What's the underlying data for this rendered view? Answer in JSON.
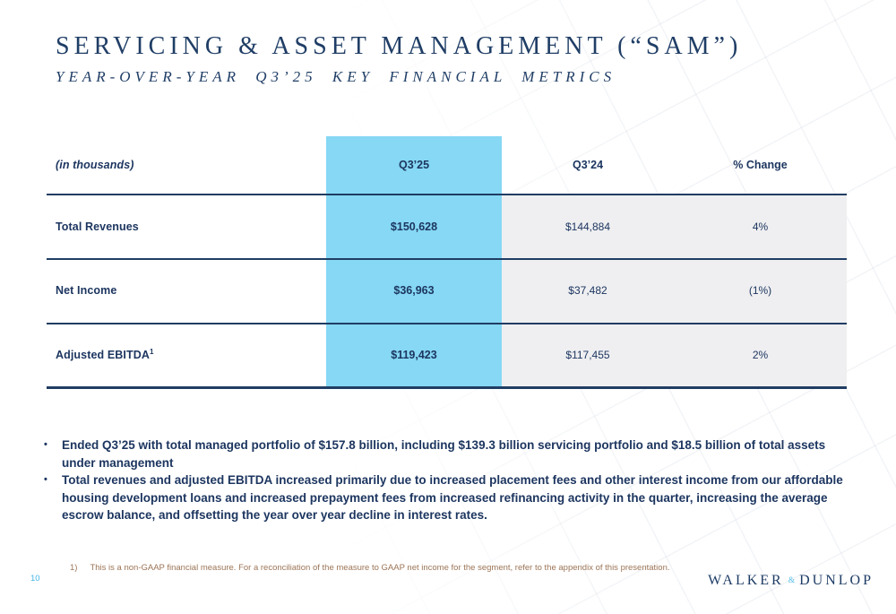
{
  "page": {
    "title": "S E R V I C I N G  &  A S S E T  M A N A G E M E N T  ( “ S A M ” )",
    "title_plain": "SERVICING & ASSET MANAGEMENT (“SAM”)",
    "subtitle": "YEAR-OVER-YEAR Q3’25 KEY FINANCIAL METRICS",
    "page_number": "10"
  },
  "table": {
    "unit_label": "(in thousands)",
    "columns": [
      "Q3’25",
      "Q3’24",
      "% Change"
    ],
    "rows": [
      {
        "label": "Total Revenues",
        "sup": "",
        "values": [
          "$150,628",
          "$144,884",
          "4%"
        ]
      },
      {
        "label": "Net Income",
        "sup": "",
        "values": [
          "$36,963",
          "$37,482",
          "(1%)"
        ]
      },
      {
        "label": "Adjusted EBITDA",
        "sup": "1",
        "values": [
          "$119,423",
          "$117,455",
          "2%"
        ]
      }
    ]
  },
  "bullets": [
    "Ended Q3’25 with total managed portfolio of $157.8 billion, including $139.3 billion servicing portfolio and $18.5 billion of total assets under management",
    "Total revenues and adjusted EBITDA increased primarily due to increased placement fees and other interest income from our affordable housing development loans and increased prepayment fees from increased refinancing activity in the quarter, increasing the average escrow balance, and offsetting the year over year decline in interest rates."
  ],
  "footnote": {
    "marker": "1)",
    "text": "This is a non-GAAP financial measure. For a reconciliation of the measure to GAAP net income for the segment, refer to the appendix of this presentation."
  },
  "logo": {
    "left": "WALKER",
    "amp": "&",
    "right": "DUNLOP"
  },
  "colors": {
    "navy_text": "#1d3660",
    "title_navy": "#203e66",
    "highlight_blue": "#86d8f4",
    "row_gray": "#efeff1",
    "rule_navy": "#203d63",
    "footnote_brown": "#9c7557",
    "accent_blue": "#45b6e6"
  }
}
